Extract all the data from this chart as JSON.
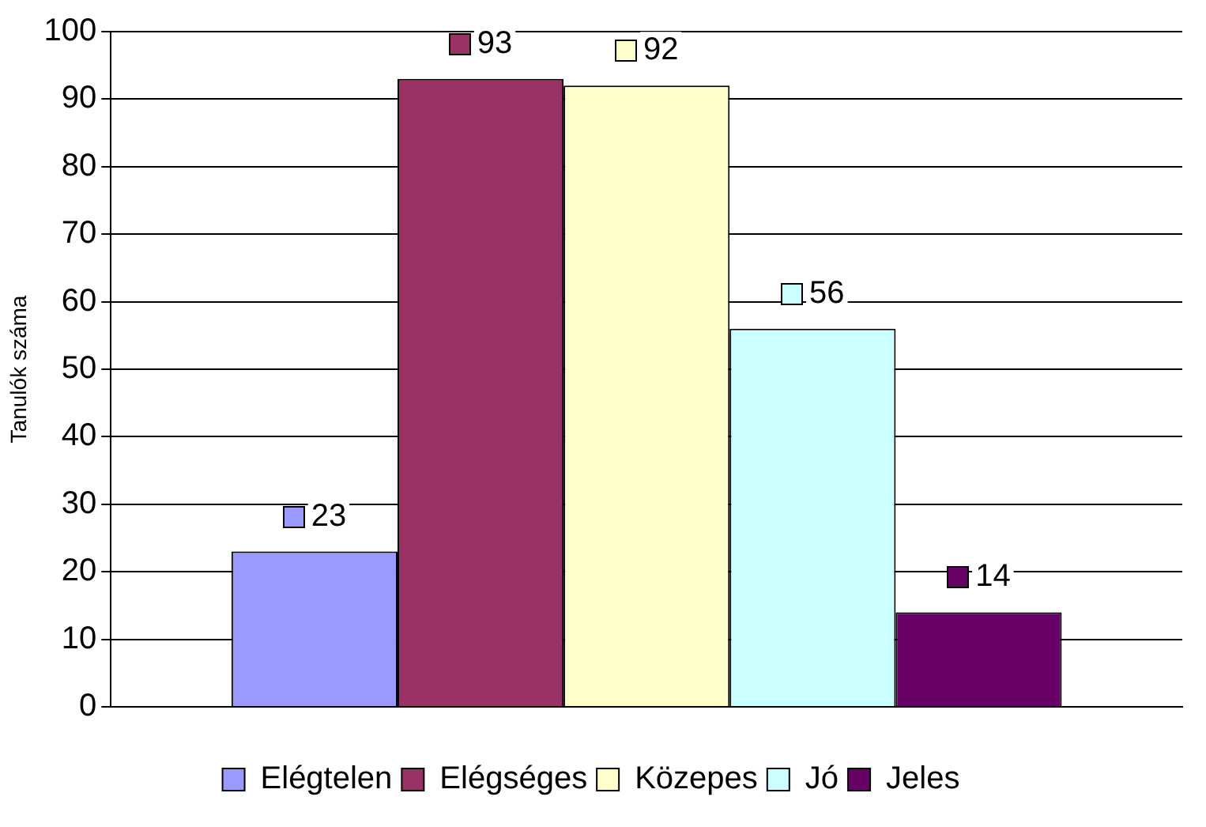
{
  "chart_data": {
    "type": "bar",
    "ylabel": "Tanulók száma",
    "categories": [
      null
    ],
    "series": [
      {
        "name": "Elégtelen",
        "color": "#9999ff",
        "values": [
          23
        ]
      },
      {
        "name": "Elégséges",
        "color": "#993366",
        "values": [
          93
        ]
      },
      {
        "name": "Közepes",
        "color": "#ffffcc",
        "values": [
          92
        ]
      },
      {
        "name": "Jó",
        "color": "#ccffff",
        "values": [
          56
        ]
      },
      {
        "name": "Jeles",
        "color": "#660066",
        "values": [
          14
        ]
      }
    ],
    "ylim": [
      0,
      100
    ],
    "yticks": [
      0,
      10,
      20,
      30,
      40,
      50,
      60,
      70,
      80,
      90,
      100
    ],
    "grid": "y",
    "legend": "bottom",
    "data_labels": true
  }
}
